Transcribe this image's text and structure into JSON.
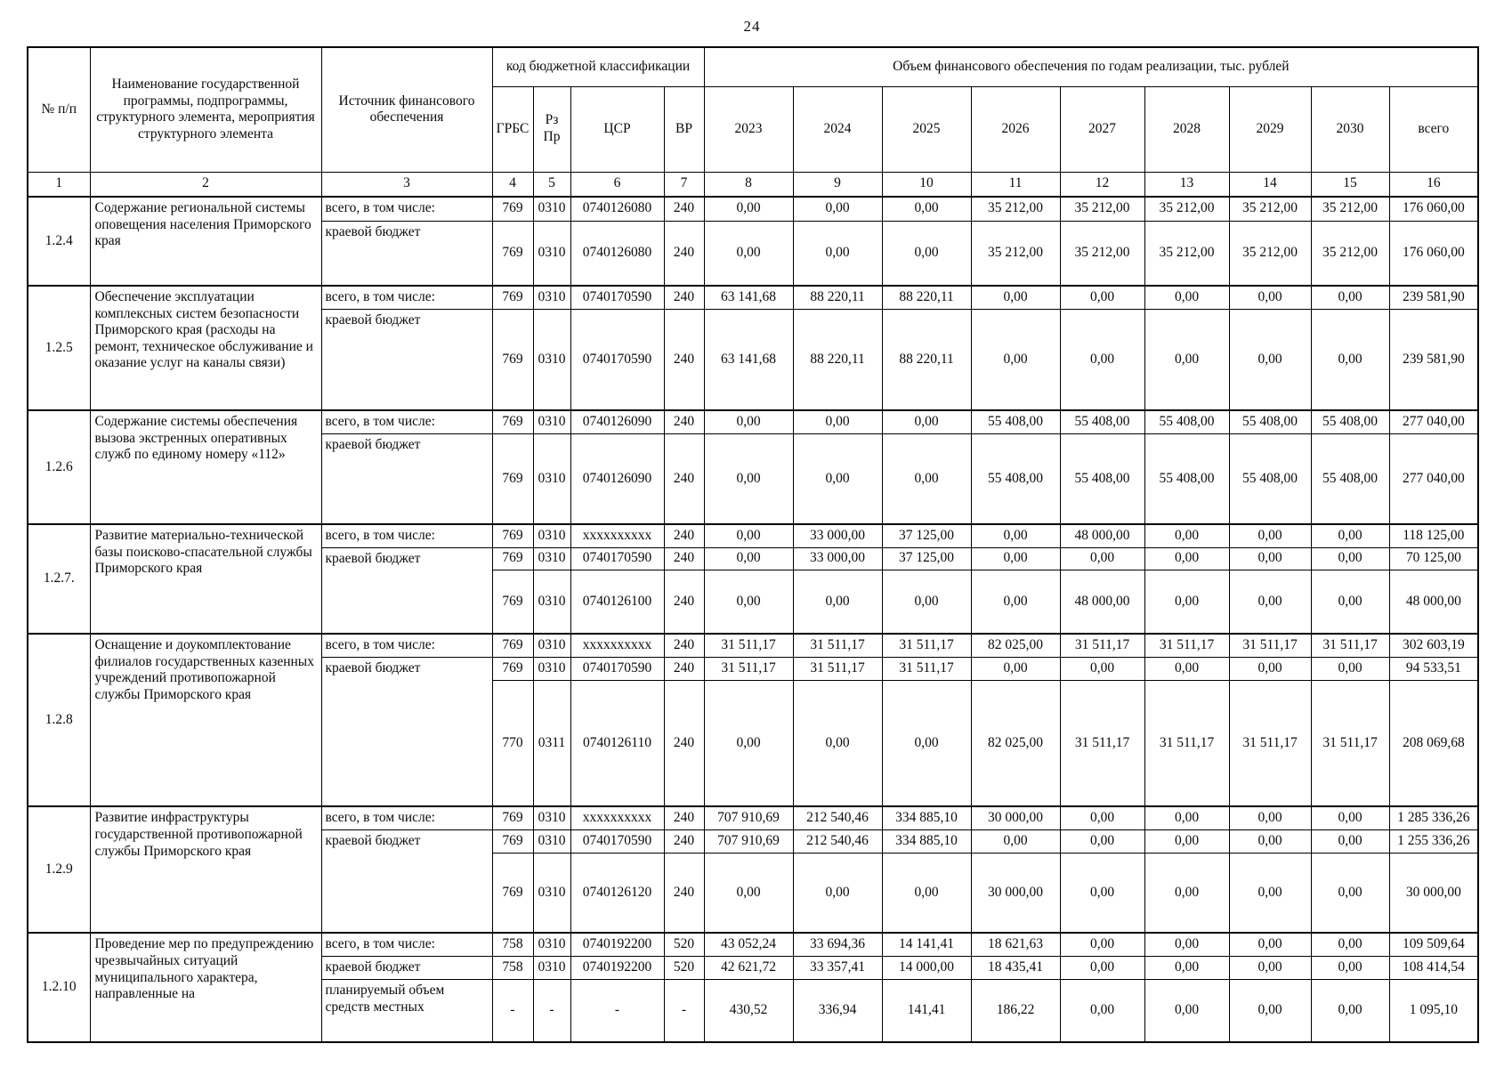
{
  "page": {
    "number": "24"
  },
  "table": {
    "header": {
      "col_num": "№ п/п",
      "col_name": "Наименование государственной программы, подпрограммы, структурного элемента, мероприятия структурного элемента",
      "col_source": "Источник финансового обеспечения",
      "col_budget_code": "код бюджетной классификации",
      "col_volume": "Объем финансового обеспечения по годам реализации, тыс. рублей",
      "code_cols": [
        "ГРБС",
        "Рз\nПр",
        "ЦСР",
        "ВР"
      ],
      "year_cols": [
        "2023",
        "2024",
        "2025",
        "2026",
        "2027",
        "2028",
        "2029",
        "2030"
      ],
      "col_total": "всего",
      "index_row": [
        "1",
        "2",
        "3",
        "4",
        "5",
        "6",
        "7",
        "8",
        "9",
        "10",
        "11",
        "12",
        "13",
        "14",
        "15",
        "16"
      ]
    },
    "blocks": [
      {
        "num": "1.2.4",
        "name": "Содержание региональной системы оповещения населения Приморского края",
        "rows": [
          {
            "source": "всего, в том числе:",
            "grbs": "769",
            "rzpr": "0310",
            "csr": "0740126080",
            "vr": "240",
            "values": [
              "0,00",
              "0,00",
              "0,00",
              "35 212,00",
              "35 212,00",
              "35 212,00",
              "35 212,00",
              "35 212,00",
              "176 060,00"
            ]
          },
          {
            "source": "краевой бюджет",
            "grbs": "769",
            "rzpr": "0310",
            "csr": "0740126080",
            "vr": "240",
            "values": [
              "0,00",
              "0,00",
              "0,00",
              "35 212,00",
              "35 212,00",
              "35 212,00",
              "35 212,00",
              "35 212,00",
              "176 060,00"
            ]
          }
        ]
      },
      {
        "num": "1.2.5",
        "name": "Обеспечение эксплуатации комплексных систем безопасности Приморского края (расходы на ремонт, техническое обслуживание и оказание услуг на каналы связи)",
        "rows": [
          {
            "source": "всего, в том числе:",
            "grbs": "769",
            "rzpr": "0310",
            "csr": "0740170590",
            "vr": "240",
            "values": [
              "63 141,68",
              "88 220,11",
              "88 220,11",
              "0,00",
              "0,00",
              "0,00",
              "0,00",
              "0,00",
              "239 581,90"
            ]
          },
          {
            "source": "краевой бюджет",
            "grbs": "769",
            "rzpr": "0310",
            "csr": "0740170590",
            "vr": "240",
            "values": [
              "63 141,68",
              "88 220,11",
              "88 220,11",
              "0,00",
              "0,00",
              "0,00",
              "0,00",
              "0,00",
              "239 581,90"
            ]
          }
        ]
      },
      {
        "num": "1.2.6",
        "name": "Содержание системы обеспечения вызова экстренных оперативных служб по единому номеру «112»",
        "rows": [
          {
            "source": "всего, в том числе:",
            "grbs": "769",
            "rzpr": "0310",
            "csr": "0740126090",
            "vr": "240",
            "values": [
              "0,00",
              "0,00",
              "0,00",
              "55 408,00",
              "55 408,00",
              "55 408,00",
              "55 408,00",
              "55 408,00",
              "277 040,00"
            ]
          },
          {
            "source": "краевой бюджет",
            "grbs": "769",
            "rzpr": "0310",
            "csr": "0740126090",
            "vr": "240",
            "values": [
              "0,00",
              "0,00",
              "0,00",
              "55 408,00",
              "55 408,00",
              "55 408,00",
              "55 408,00",
              "55 408,00",
              "277 040,00"
            ]
          }
        ]
      },
      {
        "num": "1.2.7.",
        "name": "Развитие материально-технической базы поисково-спасательной службы Приморского края",
        "rows": [
          {
            "source": "всего, в том числе:",
            "grbs": "769",
            "rzpr": "0310",
            "csr": "xxxxxxxxxx",
            "vr": "240",
            "values": [
              "0,00",
              "33 000,00",
              "37 125,00",
              "0,00",
              "48 000,00",
              "0,00",
              "0,00",
              "0,00",
              "118 125,00"
            ]
          },
          {
            "source": "краевой бюджет",
            "grbs": "769",
            "rzpr": "0310",
            "csr": "0740170590",
            "vr": "240",
            "values": [
              "0,00",
              "33 000,00",
              "37 125,00",
              "0,00",
              "0,00",
              "0,00",
              "0,00",
              "0,00",
              "70 125,00"
            ]
          },
          {
            "source": null,
            "grbs": "769",
            "rzpr": "0310",
            "csr": "0740126100",
            "vr": "240",
            "values": [
              "0,00",
              "0,00",
              "0,00",
              "0,00",
              "48 000,00",
              "0,00",
              "0,00",
              "0,00",
              "48 000,00"
            ]
          }
        ]
      },
      {
        "num": "1.2.8",
        "name": "Оснащение и доукомплектование филиалов государственных казенных учреждений противопожарной службы Приморского края",
        "rows": [
          {
            "source": "всего, в том числе:",
            "grbs": "769",
            "rzpr": "0310",
            "csr": "xxxxxxxxxx",
            "vr": "240",
            "values": [
              "31 511,17",
              "31 511,17",
              "31 511,17",
              "82 025,00",
              "31 511,17",
              "31 511,17",
              "31 511,17",
              "31 511,17",
              "302 603,19"
            ]
          },
          {
            "source": "краевой бюджет",
            "grbs": "769",
            "rzpr": "0310",
            "csr": "0740170590",
            "vr": "240",
            "values": [
              "31 511,17",
              "31 511,17",
              "31 511,17",
              "0,00",
              "0,00",
              "0,00",
              "0,00",
              "0,00",
              "94 533,51"
            ]
          },
          {
            "source": null,
            "grbs": "770",
            "rzpr": "0311",
            "csr": "0740126110",
            "vr": "240",
            "values": [
              "0,00",
              "0,00",
              "0,00",
              "82 025,00",
              "31 511,17",
              "31 511,17",
              "31 511,17",
              "31 511,17",
              "208 069,68"
            ]
          }
        ]
      },
      {
        "num": "1.2.9",
        "name": "Развитие инфраструктуры государственной противопожарной службы Приморского края",
        "rows": [
          {
            "source": "всего, в том числе:",
            "grbs": "769",
            "rzpr": "0310",
            "csr": "xxxxxxxxxx",
            "vr": "240",
            "values": [
              "707 910,69",
              "212 540,46",
              "334 885,10",
              "30 000,00",
              "0,00",
              "0,00",
              "0,00",
              "0,00",
              "1 285 336,26"
            ]
          },
          {
            "source": "краевой бюджет",
            "grbs": "769",
            "rzpr": "0310",
            "csr": "0740170590",
            "vr": "240",
            "values": [
              "707 910,69",
              "212 540,46",
              "334 885,10",
              "0,00",
              "0,00",
              "0,00",
              "0,00",
              "0,00",
              "1 255 336,26"
            ]
          },
          {
            "source": null,
            "grbs": "769",
            "rzpr": "0310",
            "csr": "0740126120",
            "vr": "240",
            "values": [
              "0,00",
              "0,00",
              "0,00",
              "30 000,00",
              "0,00",
              "0,00",
              "0,00",
              "0,00",
              "30 000,00"
            ]
          }
        ]
      },
      {
        "num": "1.2.10",
        "name": "Проведение мер по предупреждению чрезвычайных ситуаций муниципального характера, направленные на",
        "rows": [
          {
            "source": "всего, в том числе:",
            "grbs": "758",
            "rzpr": "0310",
            "csr": "0740192200",
            "vr": "520",
            "values": [
              "43 052,24",
              "33 694,36",
              "14 141,41",
              "18 621,63",
              "0,00",
              "0,00",
              "0,00",
              "0,00",
              "109 509,64"
            ]
          },
          {
            "source": "краевой бюджет",
            "grbs": "758",
            "rzpr": "0310",
            "csr": "0740192200",
            "vr": "520",
            "values": [
              "42 621,72",
              "33 357,41",
              "14 000,00",
              "18 435,41",
              "0,00",
              "0,00",
              "0,00",
              "0,00",
              "108 414,54"
            ]
          },
          {
            "source": "планируемый объем средств местных",
            "grbs": "-",
            "rzpr": "-",
            "csr": "-",
            "vr": "-",
            "values": [
              "430,52",
              "336,94",
              "141,41",
              "186,22",
              "0,00",
              "0,00",
              "0,00",
              "0,00",
              "1 095,10"
            ]
          }
        ]
      }
    ]
  }
}
